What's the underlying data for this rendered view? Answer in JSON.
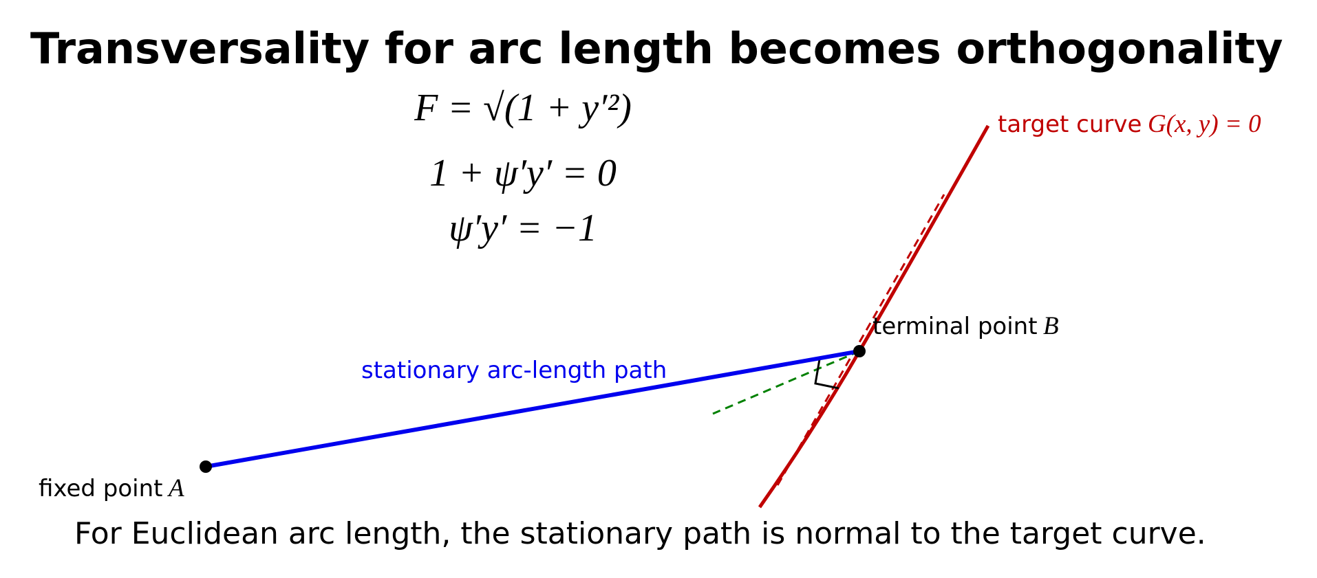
{
  "header": {
    "title": "Transversality for arc length becomes orthogonality"
  },
  "equations": [
    "F = √(1 + y′²)",
    "1 + ψ′y′ = 0",
    "ψ′y′ = −1"
  ],
  "labels": {
    "target_curve": {
      "text": "target curve",
      "math": "G(x, y) = 0"
    },
    "terminal_point": {
      "text": "terminal point",
      "math": "B"
    },
    "path": "stationary arc-length path",
    "fixed_point": {
      "text": "fixed point",
      "math": "A"
    }
  },
  "caption": "For Euclidean arc length, the stationary path is normal to the target curve."
}
